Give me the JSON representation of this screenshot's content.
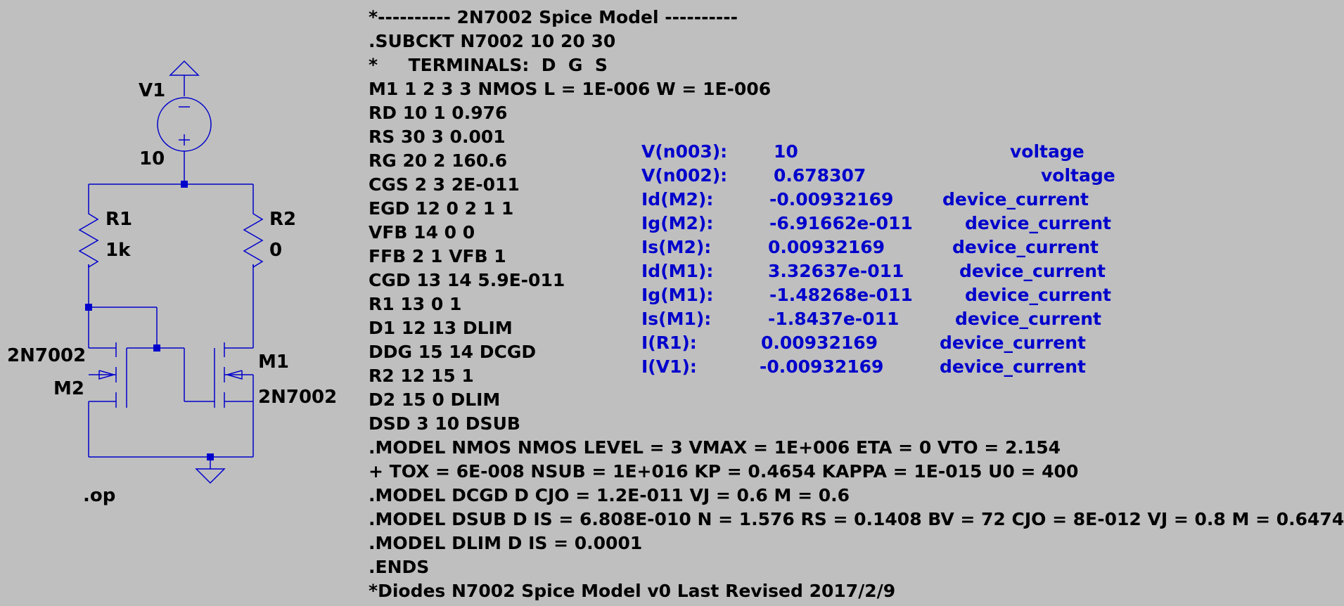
{
  "colors": {
    "background": "#bfbfbf",
    "wire": "#0000cc",
    "directive_text": "#000000",
    "result_text": "#0000cc"
  },
  "schematic": {
    "v1": {
      "name": "V1",
      "value": "10"
    },
    "r1": {
      "name": "R1",
      "value": "1k"
    },
    "r2": {
      "name": "R2",
      "value": "0"
    },
    "m2": {
      "name": "M2",
      "model": "2N7002"
    },
    "m1": {
      "name": "M1",
      "model": "2N7002"
    },
    "directive": ".op"
  },
  "netlist": [
    "*---------- 2N7002 Spice Model ----------",
    ".SUBCKT N7002 10 20 30",
    "*     TERMINALS:  D  G  S",
    "M1 1 2 3 3 NMOS L = 1E-006 W = 1E-006",
    "RD 10 1 0.976",
    "RS 30 3 0.001",
    "RG 20 2 160.6",
    "CGS 2 3 2E-011",
    "EGD 12 0 2 1 1",
    "VFB 14 0 0",
    "FFB 2 1 VFB 1",
    "CGD 13 14 5.9E-011",
    "R1 13 0 1",
    "D1 12 13 DLIM",
    "DDG 15 14 DCGD",
    "R2 12 15 1",
    "D2 15 0 DLIM",
    "DSD 3 10 DSUB",
    ".MODEL NMOS NMOS LEVEL = 3 VMAX = 1E+006 ETA = 0 VTO = 2.154",
    "+ TOX = 6E-008 NSUB = 1E+016 KP = 0.4654 KAPPA = 1E-015 U0 = 400",
    ".MODEL DCGD D CJO = 1.2E-011 VJ = 0.6 M = 0.6",
    ".MODEL DSUB D IS = 6.808E-010 N = 1.576 RS = 0.1408 BV = 72 CJO = 8E-012 VJ = 0.8 M = 0.6474",
    ".MODEL DLIM D IS = 0.0001",
    ".ENDS",
    "*Diodes N7002 Spice Model v0 Last Revised 2017/2/9"
  ],
  "operating_point": [
    {
      "name": "V(n003):",
      "value": "10",
      "type": "voltage"
    },
    {
      "name": "V(n002):",
      "value": "0.678307",
      "type": "voltage"
    },
    {
      "name": "Id(M2):",
      "value": "-0.00932169",
      "type": "device_current"
    },
    {
      "name": "Ig(M2):",
      "value": "-6.91662e-011",
      "type": "device_current"
    },
    {
      "name": "Is(M2):",
      "value": "0.00932169",
      "type": "device_current"
    },
    {
      "name": "Id(M1):",
      "value": "3.32637e-011",
      "type": "device_current"
    },
    {
      "name": "Ig(M1):",
      "value": "-1.48268e-011",
      "type": "device_current"
    },
    {
      "name": "Is(M1):",
      "value": "-1.8437e-011",
      "type": "device_current"
    },
    {
      "name": "I(R1):",
      "value": "0.00932169",
      "type": "device_current"
    },
    {
      "name": "I(V1):",
      "value": "-0.00932169",
      "type": "device_current"
    }
  ]
}
